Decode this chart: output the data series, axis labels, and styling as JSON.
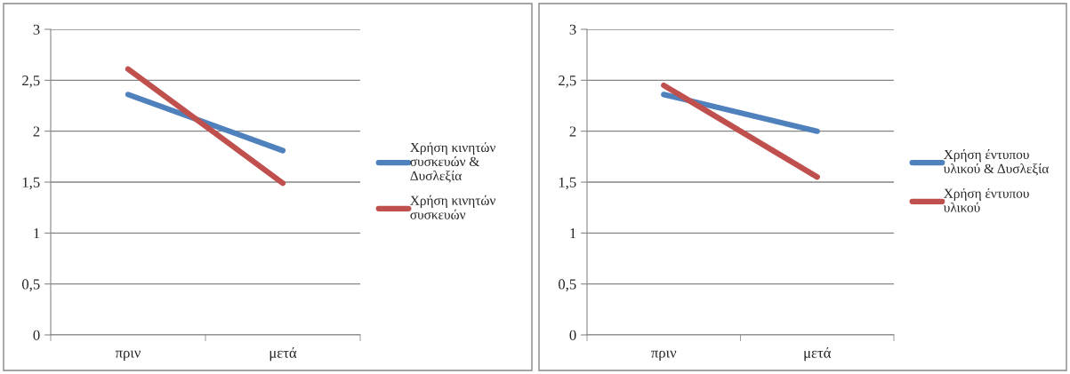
{
  "chart_data": [
    {
      "type": "line",
      "categories": [
        "πριν",
        "μετά"
      ],
      "series": [
        {
          "name": "Χρήση κινητών\nσυσκευών &\nΔυσλεξία",
          "color": "#4f81bd",
          "values": [
            2.36,
            1.81
          ]
        },
        {
          "name": "Χρήση κινητών\nσυσκευών",
          "color": "#c0504d",
          "values": [
            2.61,
            1.49
          ]
        }
      ],
      "ylim": [
        0,
        3
      ],
      "yticks": [
        0,
        {
          "value": 0.5,
          "label": "0,5"
        },
        1,
        {
          "value": 1.5,
          "label": "1,5"
        },
        2,
        {
          "value": 2.5,
          "label": "2,5"
        },
        3
      ],
      "grid": "y",
      "legend": "right",
      "marker": "none",
      "line_style": "solid"
    },
    {
      "type": "line",
      "categories": [
        "πριν",
        "μετά"
      ],
      "series": [
        {
          "name": "Χρήση έντυπου\nυλικού & Δυσλεξία",
          "color": "#4f81bd",
          "values": [
            2.36,
            2.0
          ]
        },
        {
          "name": "Χρήση έντυπου\nυλικού",
          "color": "#c0504d",
          "values": [
            2.45,
            1.55
          ]
        }
      ],
      "ylim": [
        0,
        3
      ],
      "yticks": [
        0,
        {
          "value": 0.5,
          "label": "0,5"
        },
        1,
        {
          "value": 1.5,
          "label": "1,5"
        },
        2,
        {
          "value": 2.5,
          "label": "2,5"
        },
        3
      ],
      "grid": "y",
      "legend": "right",
      "marker": "none",
      "line_style": "solid"
    }
  ]
}
